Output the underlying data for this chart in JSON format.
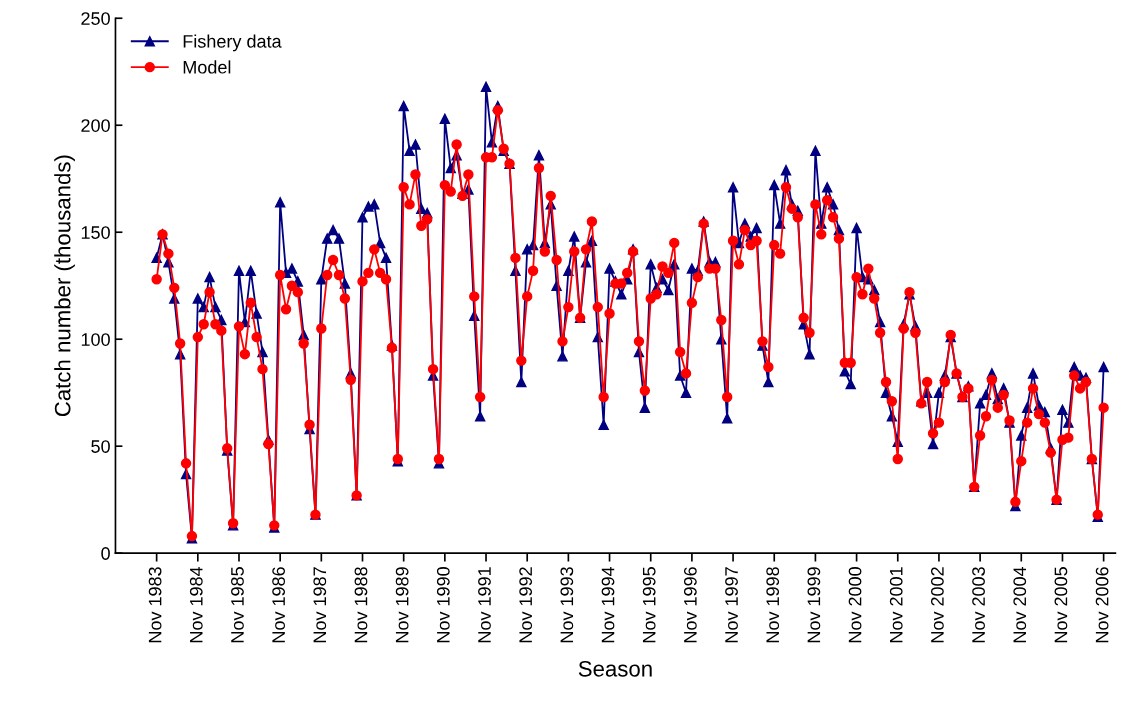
{
  "chart_data": {
    "type": "line",
    "xlabel": "Season",
    "ylabel": "Catch number (thousands)",
    "categories": [
      "Nov 1983",
      null,
      null,
      null,
      null,
      null,
      null,
      "Nov 1984",
      null,
      null,
      null,
      null,
      null,
      null,
      "Nov 1985",
      null,
      null,
      null,
      null,
      null,
      null,
      "Nov 1986",
      null,
      null,
      null,
      null,
      null,
      null,
      "Nov 1987",
      null,
      null,
      null,
      null,
      null,
      null,
      "Nov 1988",
      null,
      null,
      null,
      null,
      null,
      null,
      "Nov 1989",
      null,
      null,
      null,
      null,
      null,
      null,
      "Nov 1990",
      null,
      null,
      null,
      null,
      null,
      null,
      "Nov 1991",
      null,
      null,
      null,
      null,
      null,
      null,
      "Nov 1992",
      null,
      null,
      null,
      null,
      null,
      null,
      "Nov 1993",
      null,
      null,
      null,
      null,
      null,
      null,
      "Nov 1994",
      null,
      null,
      null,
      null,
      null,
      null,
      "Nov 1995",
      null,
      null,
      null,
      null,
      null,
      null,
      "Nov 1996",
      null,
      null,
      null,
      null,
      null,
      null,
      "Nov 1997",
      null,
      null,
      null,
      null,
      null,
      null,
      "Nov 1998",
      null,
      null,
      null,
      null,
      null,
      null,
      "Nov 1999",
      null,
      null,
      null,
      null,
      null,
      null,
      "Nov 2000",
      null,
      null,
      null,
      null,
      null,
      null,
      "Nov 2001",
      null,
      null,
      null,
      null,
      null,
      null,
      "Nov 2002",
      null,
      null,
      null,
      null,
      null,
      null,
      "Nov 2003",
      null,
      null,
      null,
      null,
      null,
      null,
      "Nov 2004",
      null,
      null,
      null,
      null,
      null,
      null,
      "Nov 2005",
      null,
      null,
      null,
      null,
      null,
      null,
      "Nov 2006"
    ],
    "series": [
      {
        "name": "Fishery data",
        "color": "#000080",
        "marker": "triangle",
        "values": [
          138,
          149,
          136,
          119,
          93,
          37,
          7,
          119,
          115,
          129,
          115,
          109,
          48,
          13,
          132,
          108,
          132,
          112,
          94,
          53,
          12,
          164,
          131,
          133,
          127,
          102,
          58,
          18,
          128,
          147,
          151,
          147,
          126,
          84,
          27,
          157,
          162,
          163,
          145,
          138,
          97,
          43,
          209,
          188,
          191,
          161,
          159,
          83,
          42,
          203,
          180,
          186,
          168,
          170,
          111,
          64,
          218,
          192,
          209,
          188,
          182,
          132,
          80,
          142,
          144,
          186,
          145,
          163,
          125,
          92,
          132,
          148,
          110,
          136,
          146,
          101,
          60,
          133,
          127,
          121,
          128,
          142,
          94,
          68,
          135,
          124,
          128,
          123,
          135,
          83,
          75,
          133,
          132,
          155,
          136,
          136,
          100,
          63,
          171,
          145,
          154,
          148,
          152,
          97,
          80,
          172,
          154,
          179,
          163,
          160,
          107,
          93,
          188,
          154,
          171,
          163,
          151,
          85,
          79,
          152,
          129,
          128,
          123,
          108,
          75,
          64,
          52,
          107,
          121,
          106,
          71,
          75,
          51,
          75,
          83,
          101,
          84,
          73,
          78,
          31,
          70,
          74,
          84,
          72,
          77,
          61,
          22,
          55,
          68,
          84,
          69,
          66,
          49,
          25,
          67,
          61,
          87,
          83,
          82,
          44,
          17,
          87
        ]
      },
      {
        "name": "Model",
        "color": "#ff0000",
        "marker": "circle",
        "values": [
          128,
          149,
          140,
          124,
          98,
          42,
          8,
          101,
          107,
          122,
          107,
          104,
          49,
          14,
          106,
          93,
          117,
          101,
          86,
          51,
          13,
          130,
          114,
          125,
          122,
          98,
          60,
          18,
          105,
          130,
          137,
          130,
          119,
          81,
          27,
          127,
          131,
          142,
          131,
          128,
          96,
          44,
          171,
          163,
          177,
          153,
          156,
          86,
          44,
          172,
          169,
          191,
          167,
          177,
          120,
          73,
          185,
          185,
          207,
          189,
          182,
          138,
          90,
          120,
          132,
          180,
          141,
          167,
          137,
          99,
          115,
          141,
          110,
          142,
          155,
          115,
          73,
          112,
          126,
          126,
          131,
          141,
          99,
          76,
          119,
          121,
          134,
          131,
          145,
          94,
          84,
          117,
          129,
          154,
          133,
          133,
          109,
          73,
          146,
          135,
          151,
          144,
          146,
          99,
          87,
          144,
          140,
          171,
          161,
          157,
          110,
          103,
          163,
          149,
          165,
          157,
          147,
          89,
          89,
          129,
          121,
          133,
          119,
          103,
          80,
          71,
          44,
          105,
          122,
          103,
          70,
          80,
          56,
          61,
          80,
          102,
          84,
          73,
          77,
          31,
          55,
          64,
          81,
          68,
          74,
          62,
          24,
          43,
          61,
          77,
          65,
          61,
          47,
          25,
          53,
          54,
          83,
          77,
          80,
          44,
          18,
          68
        ]
      }
    ],
    "ylim": [
      0,
      250
    ],
    "yticks": [
      0,
      50,
      100,
      150,
      200,
      250
    ],
    "grid": false,
    "legend": "top left",
    "line_style": "solid"
  }
}
